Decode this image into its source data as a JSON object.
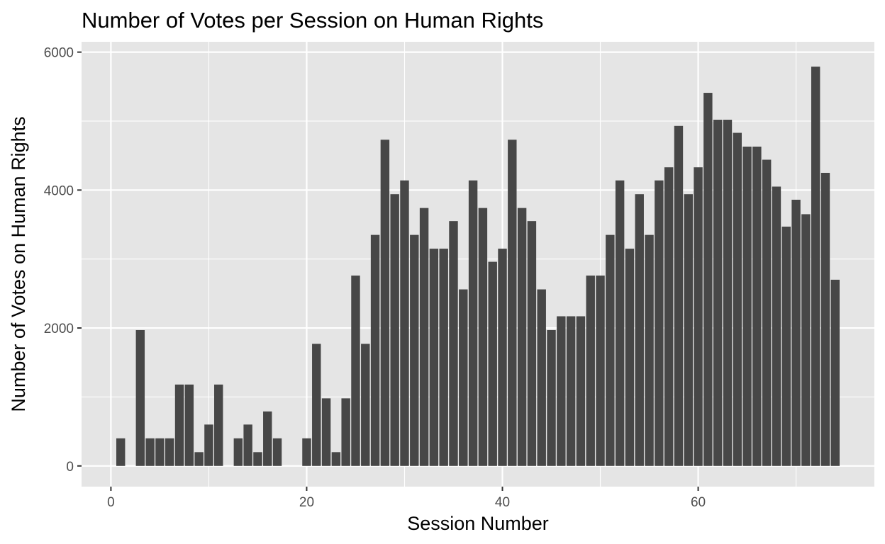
{
  "chart_data": {
    "type": "bar",
    "title": "Number of Votes per Session on Human Rights",
    "xlabel": "Session Number",
    "ylabel": "Number of Votes on Human Rights",
    "xlim": [
      -3,
      78
    ],
    "ylim": [
      -300,
      6150
    ],
    "x_ticks": [
      0,
      20,
      40,
      60
    ],
    "y_ticks": [
      0,
      2000,
      4000,
      6000
    ],
    "grid": true,
    "background": "#e5e5e5",
    "bar_color": "#474747",
    "sessions": [
      1,
      3,
      4,
      5,
      6,
      7,
      8,
      9,
      10,
      11,
      13,
      14,
      15,
      16,
      17,
      20,
      21,
      22,
      23,
      24,
      25,
      26,
      27,
      28,
      29,
      30,
      31,
      32,
      33,
      34,
      35,
      36,
      37,
      38,
      39,
      40,
      41,
      42,
      43,
      44,
      45,
      46,
      47,
      48,
      49,
      50,
      51,
      52,
      53,
      54,
      55,
      56,
      57,
      58,
      59,
      60,
      61,
      62,
      63,
      64,
      65,
      66,
      67,
      68,
      69,
      70,
      71,
      72,
      73,
      74
    ],
    "votes": [
      400,
      1970,
      400,
      400,
      400,
      1180,
      1180,
      200,
      600,
      1180,
      400,
      600,
      200,
      790,
      400,
      400,
      1770,
      980,
      200,
      980,
      2760,
      1770,
      3350,
      4730,
      3940,
      4140,
      3350,
      3740,
      3150,
      3150,
      3550,
      2560,
      4140,
      3740,
      2960,
      3150,
      4730,
      3740,
      3550,
      2560,
      1970,
      2170,
      2170,
      2170,
      2760,
      2760,
      3350,
      4140,
      3150,
      3940,
      3350,
      4140,
      4330,
      4930,
      3940,
      4330,
      5410,
      5020,
      5020,
      4830,
      4630,
      4630,
      4440,
      4050,
      3470,
      3860,
      3650,
      5790,
      4250,
      2700
    ]
  }
}
